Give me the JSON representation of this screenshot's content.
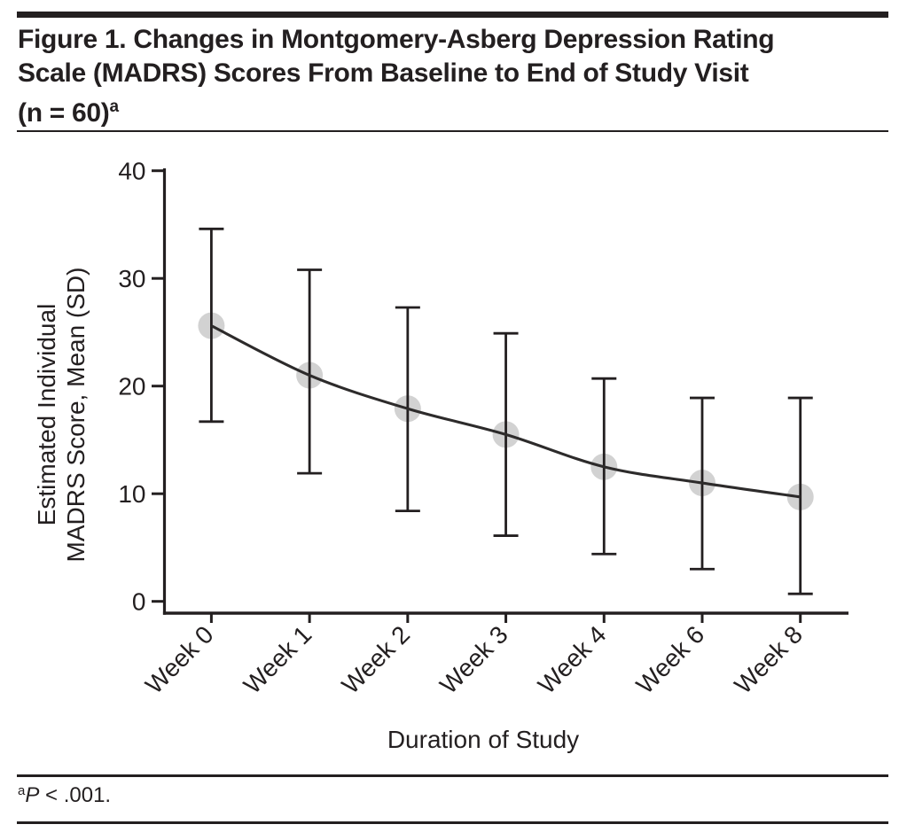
{
  "figure": {
    "title_line1": "Figure 1. Changes in Montgomery-Asberg Depression Rating",
    "title_line2": "Scale (MADRS) Scores From Baseline to End of Study Visit",
    "title_line3": "(n = 60)",
    "title_superscript": "a",
    "footnote": {
      "superscript": "a",
      "stat_label": "P",
      "stat_rest": " < .001."
    }
  },
  "chart_data": {
    "type": "line",
    "title": "",
    "xlabel": "Duration of Study",
    "ylabel_line1": "Estimated Individual",
    "ylabel_line2": "MADRS Score, Mean (SD)",
    "categories": [
      "Week 0",
      "Week 1",
      "Week 2",
      "Week 3",
      "Week 4",
      "Week 6",
      "Week 8"
    ],
    "series": [
      {
        "name": "Estimated Individual MADRS Score, Mean (SD)",
        "means": [
          25.6,
          21.0,
          17.9,
          15.5,
          12.5,
          11.0,
          9.7
        ],
        "upper": [
          34.6,
          30.8,
          27.3,
          24.9,
          20.7,
          18.9,
          18.9
        ],
        "lower": [
          16.7,
          11.9,
          8.4,
          6.1,
          4.4,
          3.0,
          0.7
        ]
      }
    ],
    "yticks": [
      0,
      10,
      20,
      30,
      40
    ],
    "ylim": [
      0,
      40
    ],
    "grid": false,
    "legend": "none",
    "colors": {
      "ink": "#231f20",
      "curve": "#2d2b2b",
      "marker_fill": "#d2d2d2"
    }
  }
}
